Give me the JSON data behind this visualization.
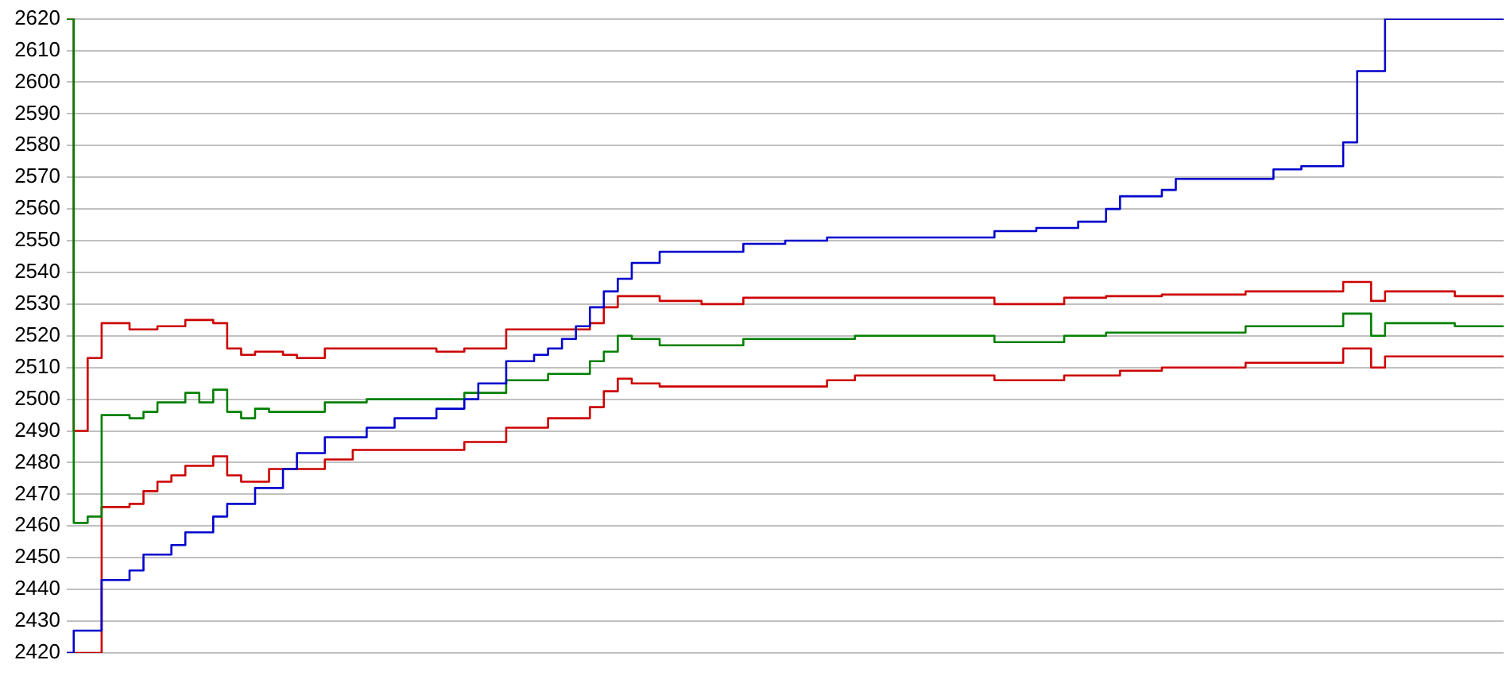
{
  "chart_data": {
    "type": "step",
    "ylim": [
      2420,
      2620
    ],
    "yticks": [
      2420,
      2430,
      2440,
      2450,
      2460,
      2470,
      2480,
      2490,
      2500,
      2510,
      2520,
      2530,
      2540,
      2550,
      2560,
      2570,
      2580,
      2590,
      2600,
      2610,
      2620
    ],
    "categories": [
      null,
      null,
      null,
      null,
      null,
      null,
      null,
      null,
      null,
      null,
      null,
      null,
      null,
      null,
      null,
      null,
      null,
      null,
      null,
      null,
      null,
      null,
      null,
      null,
      null,
      null,
      null,
      null,
      null,
      null,
      null,
      null,
      null,
      null,
      null,
      null,
      null,
      null,
      null,
      null,
      null,
      null,
      null,
      null,
      null,
      null,
      null,
      null,
      null,
      null,
      null,
      null,
      null,
      null,
      null,
      null,
      null,
      null,
      null,
      null,
      null,
      null,
      null,
      null,
      null,
      null,
      null,
      null,
      null,
      null,
      null,
      null,
      null,
      null,
      null,
      null,
      null,
      null,
      null,
      null,
      null,
      null,
      null,
      null,
      null,
      null,
      null,
      null,
      null,
      null,
      null,
      null,
      null,
      null,
      null,
      null,
      null,
      null,
      null,
      null,
      null,
      null,
      null,
      null
    ],
    "grid": "y",
    "legend": false,
    "marker": "none",
    "line_style": "solid",
    "series": [
      {
        "color": "#0000cc",
        "values": [
          2420,
          2427,
          2427,
          2443,
          2443,
          2446,
          2451,
          2451,
          2454,
          2458,
          2458,
          2463,
          2467,
          2467,
          2472,
          2472,
          2478,
          2483,
          2483,
          2488,
          2488,
          2488,
          2491,
          2491,
          2494,
          2494,
          2494,
          2497,
          2497,
          2500,
          2505,
          2505,
          2512,
          2512,
          2514,
          2516,
          2519,
          2523,
          2529,
          2534,
          2538,
          2543,
          2543,
          2546.5,
          2546.5,
          2546.5,
          2546.5,
          2546.5,
          2546.5,
          2549,
          2549,
          2549,
          2550,
          2550,
          2550,
          2551,
          2551,
          2551,
          2551,
          2551,
          2551,
          2551,
          2551,
          2551,
          2551,
          2551,
          2551,
          2553,
          2553,
          2553,
          2554,
          2554,
          2554,
          2556,
          2556,
          2560,
          2564,
          2564,
          2564,
          2566,
          2569.5,
          2569.5,
          2569.5,
          2569.5,
          2569.5,
          2569.5,
          2569.5,
          2572.5,
          2572.5,
          2573.5,
          2573.5,
          2573.5,
          2581,
          2603.5,
          2603.5,
          2620,
          2620,
          2620,
          2620,
          2620,
          2620,
          2620,
          2620,
          2620
        ]
      },
      {
        "color": "#008000",
        "values": [
          2620,
          2461,
          2463,
          2495,
          2495,
          2494,
          2496,
          2499,
          2499,
          2502,
          2499,
          2503,
          2496,
          2494,
          2497,
          2496,
          2496,
          2496,
          2496,
          2499,
          2499,
          2499,
          2500,
          2500,
          2500,
          2500,
          2500,
          2500,
          2500,
          2502,
          2502,
          2502,
          2506,
          2506,
          2506,
          2508,
          2508,
          2508,
          2512,
          2515,
          2520,
          2519,
          2519,
          2517,
          2517,
          2517,
          2517,
          2517,
          2517,
          2519,
          2519,
          2519,
          2519,
          2519,
          2519,
          2519,
          2519,
          2520,
          2520,
          2520,
          2520,
          2520,
          2520,
          2520,
          2520,
          2520,
          2520,
          2518,
          2518,
          2518,
          2518,
          2518,
          2520,
          2520,
          2520,
          2521,
          2521,
          2521,
          2521,
          2521,
          2521,
          2521,
          2521,
          2521,
          2521,
          2523,
          2523,
          2523,
          2523,
          2523,
          2523,
          2523,
          2527,
          2527,
          2520,
          2524,
          2524,
          2524,
          2524,
          2524,
          2523,
          2523,
          2523,
          2523
        ]
      },
      {
        "color": "#cc0000",
        "values": [
          2620,
          2490,
          2513,
          2524,
          2524,
          2522,
          2522,
          2523,
          2523,
          2525,
          2525,
          2524,
          2516,
          2514,
          2515,
          2515,
          2514,
          2513,
          2513,
          2516,
          2516,
          2516,
          2516,
          2516,
          2516,
          2516,
          2516,
          2515,
          2515,
          2516,
          2516,
          2516,
          2522,
          2522,
          2522,
          2522,
          2522,
          2522,
          2524,
          2529,
          2532.5,
          2532.5,
          2532.5,
          2531,
          2531,
          2531,
          2530,
          2530,
          2530,
          2532,
          2532,
          2532,
          2532,
          2532,
          2532,
          2532,
          2532,
          2532,
          2532,
          2532,
          2532,
          2532,
          2532,
          2532,
          2532,
          2532,
          2532,
          2530,
          2530,
          2530,
          2530,
          2530,
          2532,
          2532,
          2532,
          2532.5,
          2532.5,
          2532.5,
          2532.5,
          2533,
          2533,
          2533,
          2533,
          2533,
          2533,
          2534,
          2534,
          2534,
          2534,
          2534,
          2534,
          2534,
          2537,
          2537,
          2531,
          2534,
          2534,
          2534,
          2534,
          2534,
          2532.5,
          2532.5,
          2532.5,
          2532.5
        ]
      },
      {
        "color": "#cc0000",
        "values": [
          2420,
          2420,
          2420,
          2466,
          2466,
          2467,
          2471,
          2474,
          2476,
          2479,
          2479,
          2482,
          2476,
          2474,
          2474,
          2478,
          2478,
          2478,
          2478,
          2481,
          2481,
          2484,
          2484,
          2484,
          2484,
          2484,
          2484,
          2484,
          2484,
          2486.5,
          2486.5,
          2486.5,
          2491,
          2491,
          2491,
          2494,
          2494,
          2494,
          2497.5,
          2502.5,
          2506.5,
          2505,
          2505,
          2504,
          2504,
          2504,
          2504,
          2504,
          2504,
          2504,
          2504,
          2504,
          2504,
          2504,
          2504,
          2506,
          2506,
          2507.5,
          2507.5,
          2507.5,
          2507.5,
          2507.5,
          2507.5,
          2507.5,
          2507.5,
          2507.5,
          2507.5,
          2506,
          2506,
          2506,
          2506,
          2506,
          2507.5,
          2507.5,
          2507.5,
          2507.5,
          2509,
          2509,
          2509,
          2510,
          2510,
          2510,
          2510,
          2510,
          2510,
          2511.5,
          2511.5,
          2511.5,
          2511.5,
          2511.5,
          2511.5,
          2511.5,
          2516,
          2516,
          2510,
          2513.5,
          2513.5,
          2513.5,
          2513.5,
          2513.5,
          2513.5,
          2513.5,
          2513.5,
          2513.5
        ]
      }
    ]
  }
}
